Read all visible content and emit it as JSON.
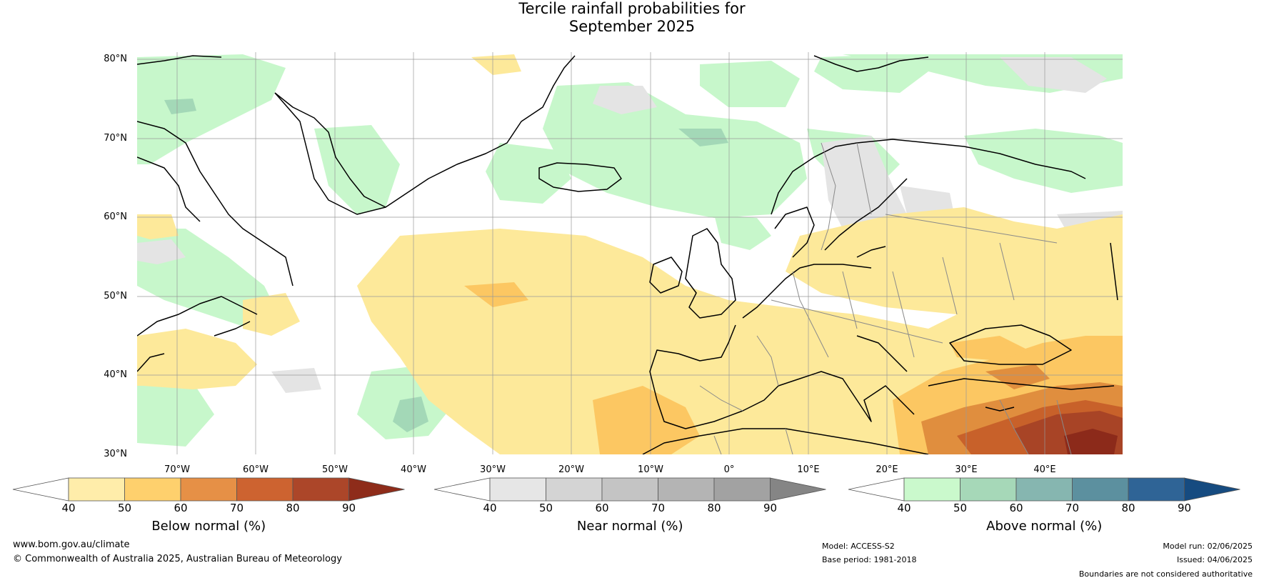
{
  "title_line1": "Tercile rainfall probabilities for",
  "title_line2": "September 2025",
  "map": {
    "lat_labels": [
      "80°N",
      "70°N",
      "60°N",
      "50°N",
      "40°N",
      "30°N"
    ],
    "lon_labels": [
      "70°W",
      "60°W",
      "50°W",
      "40°W",
      "30°W",
      "20°W",
      "10°W",
      "0°",
      "10°E",
      "20°E",
      "30°E",
      "40°E"
    ],
    "colors": {
      "below": [
        "#fde99a",
        "#fcc762",
        "#e08e3e",
        "#c8612a",
        "#a84426",
        "#8c2a1a"
      ],
      "near": [
        "#e4e4e4",
        "#d0d0d0",
        "#bdbdbd",
        "#a8a8a8",
        "#8c8c8c"
      ],
      "above": [
        "#c7f7cb",
        "#a3d8b7",
        "#86b9b0",
        "#5d91a0",
        "#2f6593",
        "#144a80"
      ]
    }
  },
  "colorbars": [
    {
      "name": "Below normal (%)",
      "ticks": [
        "40",
        "50",
        "60",
        "70",
        "80",
        "90"
      ],
      "colors": [
        "#ffedaa",
        "#fed06d",
        "#e69046",
        "#cd6330",
        "#ac4629",
        "#8e2c1a"
      ]
    },
    {
      "name": "Near normal (%)",
      "ticks": [
        "40",
        "50",
        "60",
        "70",
        "80",
        "90"
      ],
      "colors": [
        "#e6e6e6",
        "#d4d4d4",
        "#c4c4c4",
        "#b4b4b4",
        "#a2a2a2",
        "#858585"
      ]
    },
    {
      "name": "Above normal (%)",
      "ticks": [
        "40",
        "50",
        "60",
        "70",
        "80",
        "90"
      ],
      "colors": [
        "#caf9cc",
        "#a6d8b8",
        "#86b6b0",
        "#5c909f",
        "#2f6496",
        "#164b80"
      ]
    }
  ],
  "footer": {
    "website": "www.bom.gov.au/climate",
    "copyright": "© Commonwealth of Australia 2025, Australian Bureau of Meteorology",
    "model": "Model: ACCESS-S2",
    "base_period": "Base period: 1981-2018",
    "model_run": "Model run: 02/06/2025",
    "issued": "Issued: 04/06/2025",
    "disclaimer": "Boundaries are not considered authoritative"
  }
}
